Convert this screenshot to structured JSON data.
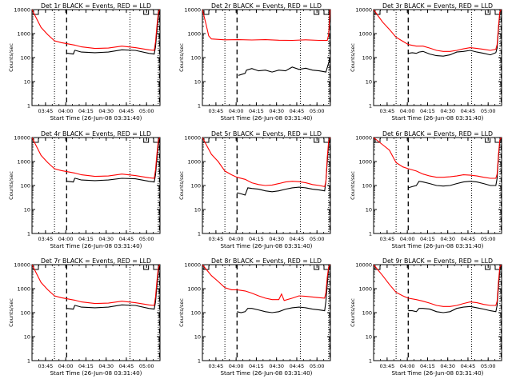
{
  "axes": {
    "xlabel": "Start Time (26-Jun-08 03:31:40)",
    "ylabel": "Counts/sec",
    "x_unit": "minutes after 03:31:40",
    "xlim": [
      3.3,
      98.3
    ],
    "ylim": [
      1,
      10000
    ],
    "y_scale": "log",
    "y_ticks": [
      1,
      10,
      100,
      1000,
      10000
    ],
    "y_tick_labels": [
      "1",
      "10",
      "100",
      "1000",
      "10000"
    ],
    "x_ticks": [
      13.33,
      28.33,
      43.33,
      58.33,
      73.33,
      88.33
    ],
    "x_tick_labels": [
      "03:45",
      "04:00",
      "04:15",
      "04:30",
      "04:45",
      "05:00"
    ],
    "grid": false
  },
  "colors": {
    "events": "#000000",
    "lld": "#ff0000"
  },
  "chart_data": [
    {
      "type": "line",
      "title": "Det 1r BLACK = Events, RED = LLD",
      "vlines": {
        "dotted": [
          20,
          76,
          97
        ],
        "dashed": [
          29,
          98
        ]
      },
      "series": [
        {
          "name": "BLACK = Events",
          "color": "#000000",
          "x": [
            29,
            30,
            34,
            35,
            35.5,
            40,
            50,
            60,
            70,
            80,
            90,
            94,
            95,
            96,
            97,
            98
          ],
          "y": [
            150,
            150,
            140,
            200,
            200,
            170,
            160,
            170,
            210,
            200,
            150,
            140,
            280,
            1200,
            5000,
            9000
          ]
        },
        {
          "name": "RED = LLD",
          "color": "#ff0000",
          "x": [
            3.3,
            10,
            15,
            20,
            25,
            29,
            35,
            40,
            50,
            60,
            70,
            80,
            90,
            94,
            95,
            96,
            97,
            98
          ],
          "y": [
            12000,
            1800,
            900,
            500,
            420,
            380,
            330,
            280,
            240,
            250,
            300,
            260,
            210,
            200,
            450,
            2000,
            7000,
            10000
          ]
        }
      ]
    },
    {
      "type": "line",
      "title": "Det 2r BLACK = Events, RED = LLD",
      "vlines": {
        "dotted": [
          20,
          76,
          97
        ],
        "dashed": [
          29,
          98
        ]
      },
      "series": [
        {
          "name": "BLACK = Events",
          "color": "#000000",
          "x": [
            30,
            35,
            36,
            40,
            45,
            50,
            55,
            60,
            65,
            70,
            75,
            80,
            85,
            90,
            95,
            97,
            98
          ],
          "y": [
            18,
            22,
            30,
            35,
            28,
            30,
            25,
            30,
            28,
            40,
            32,
            36,
            30,
            28,
            25,
            60,
            100
          ]
        },
        {
          "name": "RED = LLD",
          "color": "#ff0000",
          "x": [
            3.3,
            6,
            8,
            10,
            20,
            30,
            40,
            50,
            60,
            70,
            80,
            90,
            96,
            97,
            98
          ],
          "y": [
            12000,
            2500,
            800,
            600,
            550,
            560,
            540,
            560,
            530,
            520,
            550,
            520,
            520,
            900,
            12000
          ]
        }
      ]
    },
    {
      "type": "line",
      "title": "Det 3r BLACK = Events, RED = LLD",
      "vlines": {
        "dotted": [
          20,
          76,
          97
        ],
        "dashed": [
          29,
          98
        ]
      },
      "series": [
        {
          "name": "BLACK = Events",
          "color": "#000000",
          "x": [
            29,
            32,
            35,
            37,
            40,
            45,
            50,
            55,
            60,
            65,
            70,
            75,
            80,
            85,
            90,
            94,
            95,
            96,
            97,
            98
          ],
          "y": [
            150,
            160,
            150,
            170,
            180,
            140,
            120,
            115,
            130,
            170,
            180,
            200,
            170,
            150,
            130,
            160,
            250,
            1500,
            7000,
            10000
          ]
        },
        {
          "name": "RED = LLD",
          "color": "#ff0000",
          "x": [
            3.3,
            10,
            15,
            20,
            25,
            29,
            35,
            40,
            45,
            50,
            55,
            60,
            65,
            70,
            75,
            80,
            85,
            90,
            94,
            95,
            96,
            97,
            98
          ],
          "y": [
            12000,
            3000,
            1500,
            700,
            480,
            350,
            300,
            300,
            250,
            200,
            180,
            180,
            200,
            230,
            260,
            240,
            220,
            200,
            220,
            350,
            2000,
            8000,
            10000
          ]
        }
      ]
    },
    {
      "type": "line",
      "title": "Det 4r BLACK = Events, RED = LLD",
      "vlines": {
        "dotted": [
          20,
          76,
          97
        ],
        "dashed": [
          29,
          98
        ]
      },
      "series": [
        {
          "name": "BLACK = Events",
          "color": "#000000",
          "x": [
            29,
            34,
            35,
            35.5,
            40,
            50,
            60,
            70,
            80,
            90,
            94,
            95,
            96,
            97,
            98
          ],
          "y": [
            150,
            140,
            200,
            200,
            170,
            160,
            170,
            200,
            190,
            150,
            140,
            280,
            1200,
            5000,
            9000
          ]
        },
        {
          "name": "RED = LLD",
          "color": "#ff0000",
          "x": [
            3.3,
            10,
            15,
            20,
            25,
            29,
            35,
            40,
            50,
            60,
            70,
            80,
            90,
            94,
            95,
            96,
            97,
            98
          ],
          "y": [
            12000,
            1800,
            900,
            500,
            420,
            380,
            330,
            280,
            240,
            250,
            300,
            260,
            210,
            200,
            450,
            2000,
            7000,
            10000
          ]
        }
      ]
    },
    {
      "type": "line",
      "title": "Det 5r BLACK = Events, RED = LLD",
      "vlines": {
        "dotted": [
          20,
          76,
          97
        ],
        "dashed": [
          29,
          98
        ]
      },
      "series": [
        {
          "name": "BLACK = Events",
          "color": "#000000",
          "x": [
            29,
            32,
            35,
            37,
            40,
            45,
            50,
            55,
            60,
            65,
            70,
            75,
            80,
            85,
            90,
            94,
            95,
            96,
            97,
            98
          ],
          "y": [
            50,
            45,
            40,
            80,
            75,
            70,
            60,
            55,
            60,
            70,
            80,
            85,
            80,
            70,
            65,
            60,
            150,
            1000,
            5000,
            10000
          ]
        },
        {
          "name": "RED = LLD",
          "color": "#ff0000",
          "x": [
            3.3,
            10,
            15,
            20,
            25,
            29,
            35,
            40,
            45,
            50,
            55,
            60,
            65,
            70,
            75,
            80,
            85,
            90,
            94,
            95,
            96,
            97,
            98
          ],
          "y": [
            12000,
            2000,
            1000,
            400,
            280,
            220,
            180,
            130,
            110,
            100,
            105,
            120,
            140,
            150,
            145,
            130,
            110,
            100,
            90,
            150,
            1500,
            7000,
            10000
          ]
        }
      ]
    },
    {
      "type": "line",
      "title": "Det 6r BLACK = Events, RED = LLD",
      "vlines": {
        "dotted": [
          20,
          76,
          97
        ],
        "dashed": [
          29,
          98
        ]
      },
      "series": [
        {
          "name": "BLACK = Events",
          "color": "#000000",
          "x": [
            29,
            32,
            35,
            37,
            40,
            45,
            50,
            55,
            60,
            65,
            70,
            75,
            80,
            85,
            90,
            94,
            95,
            96,
            97,
            98
          ],
          "y": [
            80,
            90,
            100,
            150,
            140,
            120,
            100,
            95,
            100,
            120,
            140,
            150,
            140,
            120,
            100,
            100,
            200,
            1500,
            7000,
            10000
          ]
        },
        {
          "name": "RED = LLD",
          "color": "#ff0000",
          "x": [
            3.3,
            10,
            15,
            20,
            25,
            29,
            35,
            40,
            45,
            50,
            55,
            60,
            65,
            70,
            75,
            80,
            85,
            90,
            94,
            95,
            96,
            97,
            98
          ],
          "y": [
            12000,
            5000,
            3000,
            900,
            600,
            500,
            400,
            300,
            250,
            220,
            220,
            230,
            250,
            280,
            270,
            250,
            220,
            200,
            200,
            300,
            2000,
            8000,
            10000
          ]
        }
      ]
    },
    {
      "type": "line",
      "title": "Det 7r BLACK = Events, RED = LLD",
      "vlines": {
        "dotted": [
          20,
          76,
          97
        ],
        "dashed": [
          29,
          98
        ]
      },
      "series": [
        {
          "name": "BLACK = Events",
          "color": "#000000",
          "x": [
            29,
            34,
            35,
            35.5,
            40,
            50,
            60,
            70,
            80,
            90,
            94,
            95,
            96,
            97,
            98
          ],
          "y": [
            150,
            140,
            200,
            200,
            170,
            160,
            170,
            210,
            200,
            150,
            140,
            280,
            1200,
            5000,
            9000
          ]
        },
        {
          "name": "RED = LLD",
          "color": "#ff0000",
          "x": [
            3.3,
            10,
            15,
            20,
            25,
            29,
            35,
            40,
            50,
            60,
            70,
            80,
            90,
            94,
            95,
            96,
            97,
            98
          ],
          "y": [
            12000,
            1800,
            900,
            500,
            420,
            380,
            330,
            280,
            240,
            250,
            300,
            260,
            210,
            200,
            450,
            2000,
            7000,
            10000
          ]
        }
      ]
    },
    {
      "type": "line",
      "title": "Det 8r BLACK = Events, RED = LLD",
      "vlines": {
        "dotted": [
          20,
          76,
          97
        ],
        "dashed": [
          29,
          98
        ]
      },
      "series": [
        {
          "name": "BLACK = Events",
          "color": "#000000",
          "x": [
            29,
            32,
            35,
            37,
            40,
            45,
            50,
            55,
            60,
            65,
            70,
            75,
            80,
            85,
            90,
            94,
            95,
            96,
            97,
            98
          ],
          "y": [
            110,
            100,
            110,
            150,
            150,
            130,
            110,
            100,
            110,
            140,
            160,
            170,
            160,
            140,
            130,
            120,
            300,
            1500,
            7000,
            10000
          ]
        },
        {
          "name": "RED = LLD",
          "color": "#ff0000",
          "x": [
            3.3,
            10,
            15,
            20,
            25,
            29,
            35,
            40,
            45,
            50,
            55,
            60,
            62,
            64,
            70,
            75,
            80,
            85,
            90,
            94,
            95,
            96,
            97,
            98
          ],
          "y": [
            12000,
            3500,
            2000,
            1100,
            900,
            900,
            800,
            650,
            500,
            400,
            350,
            350,
            600,
            320,
            400,
            500,
            480,
            450,
            420,
            400,
            700,
            3000,
            8000,
            10000
          ]
        }
      ]
    },
    {
      "type": "line",
      "title": "Det 9r BLACK = Events, RED = LLD",
      "vlines": {
        "dotted": [
          20,
          76,
          97
        ],
        "dashed": [
          29,
          98
        ]
      },
      "series": [
        {
          "name": "BLACK = Events",
          "color": "#000000",
          "x": [
            29,
            32,
            35,
            37,
            40,
            45,
            50,
            55,
            60,
            65,
            70,
            75,
            80,
            85,
            90,
            94,
            95,
            96,
            97,
            98
          ],
          "y": [
            120,
            120,
            110,
            150,
            150,
            140,
            110,
            100,
            110,
            150,
            170,
            180,
            160,
            140,
            120,
            110,
            200,
            1200,
            6000,
            10000
          ]
        },
        {
          "name": "RED = LLD",
          "color": "#ff0000",
          "x": [
            3.3,
            10,
            15,
            20,
            25,
            29,
            35,
            40,
            45,
            50,
            55,
            60,
            65,
            70,
            75,
            80,
            85,
            90,
            94,
            95,
            96,
            97,
            98
          ],
          "y": [
            12000,
            3500,
            1500,
            700,
            500,
            400,
            350,
            300,
            250,
            200,
            180,
            180,
            200,
            240,
            280,
            260,
            220,
            200,
            200,
            300,
            2000,
            8000,
            10000
          ]
        }
      ]
    }
  ]
}
